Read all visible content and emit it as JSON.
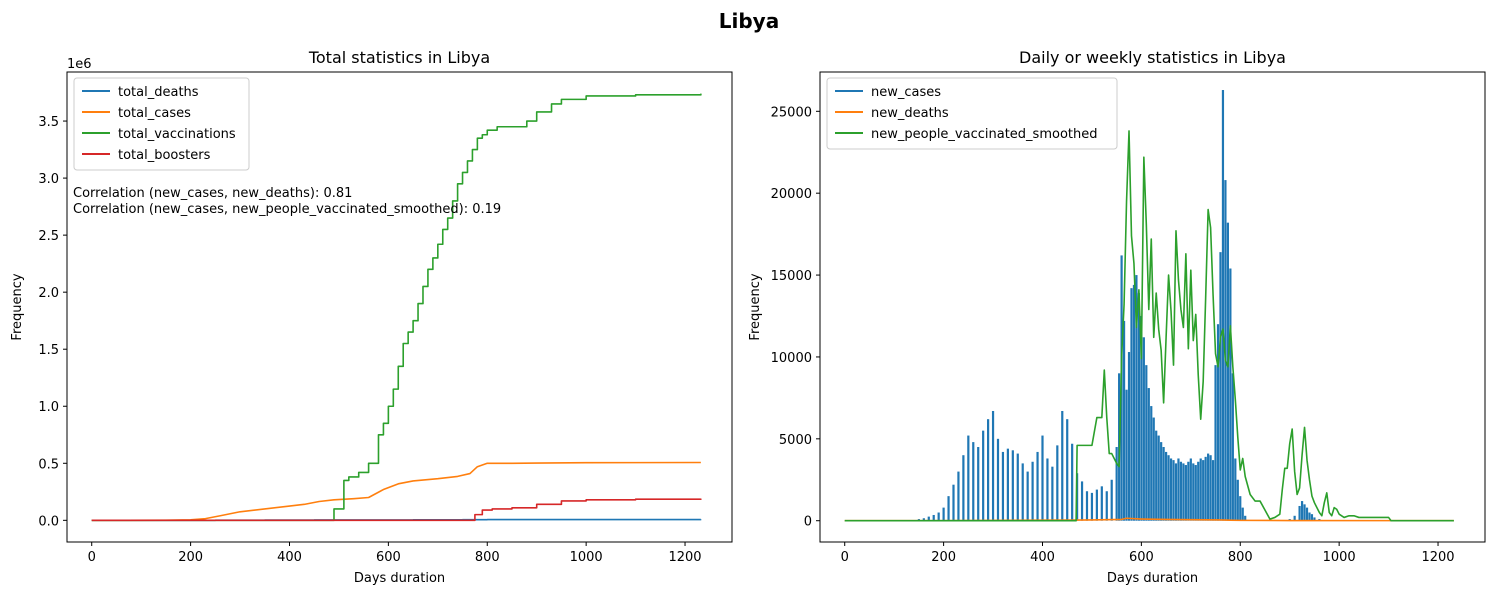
{
  "figure": {
    "suptitle": "Libya"
  },
  "colors": {
    "blue": "#1f77b4",
    "orange": "#ff7f0e",
    "green": "#2ca02c",
    "red": "#d62728"
  },
  "chart_data": [
    {
      "type": "line",
      "title": "Total statistics in Libya",
      "xlabel": "Days duration",
      "ylabel": "Frequency",
      "y_scale_label": "1e6",
      "xlim": [
        -50,
        1295
      ],
      "ylim": [
        -0.19,
        3.93
      ],
      "xticks": [
        0,
        200,
        400,
        600,
        800,
        1000,
        1200
      ],
      "xtick_labels": [
        "0",
        "200",
        "400",
        "600",
        "800",
        "1000",
        "1200"
      ],
      "yticks": [
        0.0,
        0.5,
        1.0,
        1.5,
        2.0,
        2.5,
        3.0,
        3.5
      ],
      "ytick_labels": [
        "0.0",
        "0.5",
        "1.0",
        "1.5",
        "2.0",
        "2.5",
        "3.0",
        "3.5"
      ],
      "legend_position": "upper-left",
      "annotations": [
        "Correlation (new_cases, new_deaths): 0.81",
        "Correlation (new_cases, new_people_vaccinated_smoothed): 0.19"
      ],
      "series": [
        {
          "name": "total_deaths",
          "color": "#1f77b4",
          "step": true,
          "x": [
            0,
            150,
            250,
            350,
            450,
            550,
            650,
            750,
            800,
            900,
            1000,
            1232
          ],
          "y": [
            0,
            0,
            0.001,
            0.002,
            0.003,
            0.004,
            0.005,
            0.006,
            0.0065,
            0.0067,
            0.0068,
            0.0069
          ]
        },
        {
          "name": "total_cases",
          "color": "#ff7f0e",
          "step": false,
          "x": [
            0,
            150,
            200,
            230,
            260,
            300,
            350,
            400,
            430,
            460,
            490,
            530,
            560,
            590,
            620,
            650,
            700,
            740,
            765,
            780,
            800,
            850,
            900,
            1000,
            1232
          ],
          "y": [
            0,
            0.001,
            0.005,
            0.015,
            0.04,
            0.075,
            0.1,
            0.125,
            0.14,
            0.165,
            0.18,
            0.19,
            0.2,
            0.27,
            0.32,
            0.345,
            0.365,
            0.385,
            0.41,
            0.47,
            0.5,
            0.5,
            0.502,
            0.505,
            0.507
          ]
        },
        {
          "name": "total_vaccinations",
          "color": "#2ca02c",
          "step": true,
          "x": [
            0,
            490,
            510,
            520,
            540,
            560,
            580,
            590,
            600,
            610,
            620,
            630,
            640,
            650,
            660,
            670,
            680,
            690,
            700,
            710,
            720,
            730,
            740,
            750,
            760,
            770,
            780,
            790,
            800,
            820,
            850,
            880,
            900,
            930,
            950,
            1000,
            1100,
            1232
          ],
          "y": [
            0,
            0.1,
            0.35,
            0.38,
            0.42,
            0.5,
            0.75,
            0.85,
            1.0,
            1.15,
            1.35,
            1.55,
            1.65,
            1.75,
            1.9,
            2.05,
            2.2,
            2.3,
            2.42,
            2.55,
            2.65,
            2.8,
            2.95,
            3.05,
            3.15,
            3.25,
            3.35,
            3.38,
            3.42,
            3.45,
            3.45,
            3.5,
            3.58,
            3.65,
            3.69,
            3.72,
            3.73,
            3.74
          ]
        },
        {
          "name": "total_boosters",
          "color": "#d62728",
          "step": true,
          "x": [
            0,
            770,
            775,
            790,
            810,
            850,
            900,
            950,
            1000,
            1050,
            1100,
            1232
          ],
          "y": [
            0,
            0,
            0.05,
            0.09,
            0.1,
            0.11,
            0.14,
            0.17,
            0.18,
            0.18,
            0.185,
            0.19
          ]
        }
      ]
    },
    {
      "type": "bar+line",
      "title": "Daily or weekly statistics in Libya",
      "xlabel": "Days duration",
      "ylabel": "Frequency",
      "xlim": [
        -50,
        1295
      ],
      "ylim": [
        -1300,
        27400
      ],
      "xticks": [
        0,
        200,
        400,
        600,
        800,
        1000,
        1200
      ],
      "xtick_labels": [
        "0",
        "200",
        "400",
        "600",
        "800",
        "1000",
        "1200"
      ],
      "yticks": [
        0,
        5000,
        10000,
        15000,
        20000,
        25000
      ],
      "ytick_labels": [
        "0",
        "5000",
        "10000",
        "15000",
        "20000",
        "25000"
      ],
      "legend_position": "upper-left",
      "bars": {
        "name": "new_cases",
        "color": "#1f77b4",
        "x": [
          150,
          160,
          170,
          180,
          190,
          200,
          210,
          220,
          230,
          240,
          250,
          260,
          270,
          280,
          290,
          300,
          310,
          320,
          330,
          340,
          350,
          360,
          370,
          380,
          390,
          400,
          410,
          420,
          430,
          440,
          450,
          460,
          470,
          480,
          490,
          500,
          510,
          520,
          530,
          540,
          550,
          555,
          560,
          565,
          570,
          575,
          580,
          585,
          590,
          595,
          600,
          605,
          610,
          615,
          620,
          625,
          630,
          635,
          640,
          645,
          650,
          655,
          660,
          665,
          670,
          675,
          680,
          685,
          690,
          695,
          700,
          705,
          710,
          715,
          720,
          725,
          730,
          735,
          740,
          745,
          750,
          755,
          760,
          765,
          770,
          775,
          780,
          785,
          790,
          795,
          800,
          805,
          810,
          900,
          910,
          920,
          925,
          930,
          935,
          940,
          945,
          950,
          960
        ],
        "values": [
          100,
          150,
          250,
          350,
          500,
          800,
          1500,
          2200,
          3000,
          4000,
          5200,
          4800,
          4500,
          5500,
          6200,
          6700,
          5000,
          4200,
          4400,
          4300,
          4100,
          3500,
          3000,
          3600,
          4200,
          5200,
          3800,
          3300,
          4600,
          6700,
          6200,
          4700,
          2900,
          2400,
          1800,
          1700,
          1900,
          2100,
          1800,
          2500,
          4500,
          9000,
          16200,
          12200,
          8000,
          10300,
          14200,
          14400,
          15000,
          13900,
          12500,
          11200,
          9500,
          8100,
          7000,
          6300,
          5500,
          5200,
          4800,
          4500,
          4200,
          4000,
          3800,
          3700,
          3500,
          3800,
          3600,
          3500,
          3400,
          3600,
          3800,
          3500,
          3400,
          3600,
          3800,
          3700,
          3900,
          4100,
          4000,
          3700,
          9500,
          12000,
          16400,
          26300,
          20800,
          18200,
          15400,
          9000,
          3800,
          2500,
          1500,
          800,
          300,
          100,
          300,
          900,
          1200,
          1000,
          800,
          500,
          400,
          200,
          100
        ]
      },
      "series": [
        {
          "name": "new_deaths",
          "color": "#ff7f0e",
          "x": [
            0,
            200,
            400,
            470,
            500,
            560,
            570,
            600,
            650,
            700,
            760,
            780,
            800,
            900,
            1100,
            1232
          ],
          "y": [
            0,
            5,
            30,
            40,
            50,
            80,
            150,
            100,
            80,
            60,
            50,
            30,
            20,
            10,
            5,
            0
          ]
        },
        {
          "name": "new_people_vaccinated_smoothed",
          "color": "#2ca02c",
          "x": [
            0,
            468,
            470,
            490,
            500,
            510,
            515,
            520,
            525,
            530,
            535,
            540,
            550,
            555,
            560,
            565,
            570,
            575,
            580,
            585,
            590,
            595,
            600,
            605,
            610,
            615,
            620,
            625,
            630,
            635,
            640,
            645,
            650,
            655,
            660,
            665,
            670,
            675,
            680,
            685,
            690,
            695,
            700,
            705,
            710,
            715,
            720,
            725,
            730,
            735,
            740,
            745,
            750,
            755,
            760,
            765,
            770,
            775,
            780,
            785,
            790,
            795,
            800,
            805,
            810,
            820,
            830,
            840,
            860,
            870,
            880,
            885,
            890,
            895,
            900,
            905,
            910,
            915,
            920,
            925,
            930,
            935,
            940,
            945,
            950,
            955,
            960,
            965,
            970,
            975,
            980,
            985,
            990,
            995,
            1000,
            1010,
            1020,
            1030,
            1040,
            1050,
            1060,
            1070,
            1080,
            1090,
            1100,
            1105,
            1232
          ],
          "y": [
            0,
            0,
            4600,
            4600,
            4600,
            6300,
            6300,
            6300,
            9200,
            6300,
            4100,
            4100,
            3500,
            3300,
            10000,
            13200,
            19500,
            23800,
            17400,
            15700,
            11800,
            14100,
            9900,
            22200,
            18100,
            12900,
            17200,
            11200,
            13900,
            11700,
            10400,
            7200,
            11200,
            15000,
            12800,
            9500,
            17700,
            14700,
            12900,
            11800,
            16300,
            10500,
            15300,
            11000,
            12600,
            8900,
            6200,
            8500,
            13600,
            19000,
            17900,
            13800,
            10200,
            9400,
            11200,
            11700,
            9800,
            9400,
            11900,
            9400,
            7400,
            5100,
            3100,
            3800,
            2700,
            1600,
            1200,
            1200,
            100,
            200,
            400,
            1900,
            3200,
            3200,
            4700,
            5600,
            3000,
            1600,
            2000,
            4000,
            5700,
            3700,
            2500,
            1500,
            1100,
            800,
            500,
            300,
            1100,
            1700,
            500,
            300,
            800,
            700,
            400,
            200,
            300,
            300,
            200,
            200,
            200,
            200,
            200,
            200,
            200,
            0,
            0
          ]
        }
      ]
    }
  ]
}
